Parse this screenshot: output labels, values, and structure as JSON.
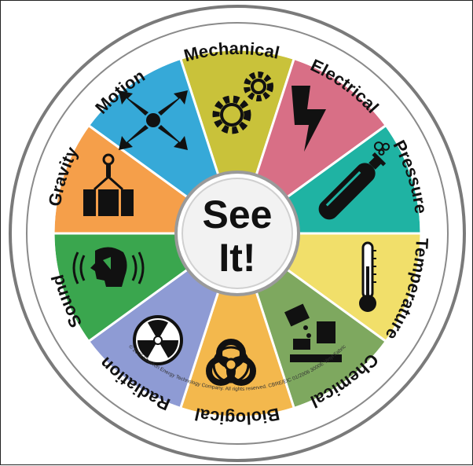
{
  "center": {
    "line1": "See",
    "line2": "It!"
  },
  "hazards": [
    {
      "label": "Mechanical",
      "color": "#c9c23a",
      "icon": "gears-icon"
    },
    {
      "label": "Electrical",
      "color": "#d86f86",
      "icon": "lightning-bolt-icon"
    },
    {
      "label": "Pressure",
      "color": "#1fb3a3",
      "icon": "gas-cylinder-icon"
    },
    {
      "label": "Temperature",
      "color": "#f1df6a",
      "icon": "thermometer-icon"
    },
    {
      "label": "Chemical",
      "color": "#7ea85f",
      "icon": "chemical-corrosive-icon"
    },
    {
      "label": "Biological",
      "color": "#f3b84d",
      "icon": "biohazard-icon"
    },
    {
      "label": "Radiation",
      "color": "#8e9bd4",
      "icon": "radiation-trefoil-icon"
    },
    {
      "label": "Sound",
      "color": "#3aa64e",
      "icon": "head-sound-waves-icon"
    },
    {
      "label": "Gravity",
      "color": "#f59f4a",
      "icon": "hanging-load-icon"
    },
    {
      "label": "Motion",
      "color": "#36a9d8",
      "icon": "motion-arrows-icon"
    }
  ],
  "copyright": "© 2006 Chevron Energy Technology Company. All rights reserved. CBRE/EIC 01/2006 3000E  Vinyl Fabric"
}
